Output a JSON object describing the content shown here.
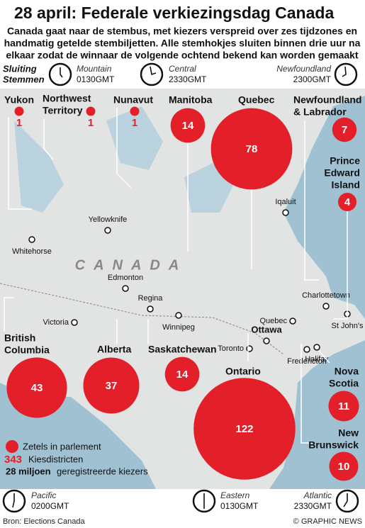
{
  "header": {
    "title": "28 april: Federale verkiezingsdag Canada",
    "subtitle": [
      "Canada gaat naar de stembus, met kiezers verspreid over zes tijdzones en",
      "handmatig getelde stembiljetten. Alle stemhokjes sluiten binnen drie uur na",
      "elkaar zodat de winnaar de volgende ochtend bekend kan worden gemaakt"
    ]
  },
  "closing": {
    "label": [
      "Sluiting",
      "Stemmen"
    ],
    "zones": [
      {
        "name": "Mountain",
        "time": "0130GMT"
      },
      {
        "name": "Central",
        "time": "2330GMT"
      },
      {
        "name": "Newfoundland",
        "time": "2300GMT"
      },
      {
        "name": "Pacific",
        "time": "0200GMT"
      },
      {
        "name": "Eastern",
        "time": "0130GMT"
      },
      {
        "name": "Atlantic",
        "time": "2330GMT"
      }
    ]
  },
  "map_label": "CANADA",
  "cities": [
    "Whitehorse",
    "Yellowknife",
    "Iqaluit",
    "Edmonton",
    "Regina",
    "Victoria",
    "Winnipeg",
    "Charlottetown",
    "Quebec",
    "Ottawa",
    "Toronto",
    "Fredericton",
    "Halifax",
    "St John's"
  ],
  "provinces": [
    {
      "name": [
        "Yukon"
      ],
      "seats": 1
    },
    {
      "name": [
        "Northwest",
        "Territory"
      ],
      "seats": 1
    },
    {
      "name": [
        "Nunavut"
      ],
      "seats": 1
    },
    {
      "name": [
        "Manitoba"
      ],
      "seats": 14
    },
    {
      "name": [
        "Quebec"
      ],
      "seats": 78
    },
    {
      "name": [
        "Newfoundland",
        "& Labrador"
      ],
      "seats": 7
    },
    {
      "name": [
        "Prince",
        "Edward",
        "Island"
      ],
      "seats": 4
    },
    {
      "name": [
        "British",
        "Columbia"
      ],
      "seats": 43
    },
    {
      "name": [
        "Alberta"
      ],
      "seats": 37
    },
    {
      "name": [
        "Saskatchewan"
      ],
      "seats": 14
    },
    {
      "name": [
        "Ontario"
      ],
      "seats": 122
    },
    {
      "name": [
        "Nova",
        "Scotia"
      ],
      "seats": 11
    },
    {
      "name": [
        "New",
        "Brunswick"
      ],
      "seats": 10
    }
  ],
  "legend": {
    "seats_label": "Zetels in parlement",
    "districts": 343,
    "districts_label": "Kiesdistricten",
    "voters": "28 miljoen",
    "voters_label": "geregistreerde kiezers"
  },
  "source": "Bron: Elections Canada",
  "credit": "© GRAPHIC NEWS"
}
